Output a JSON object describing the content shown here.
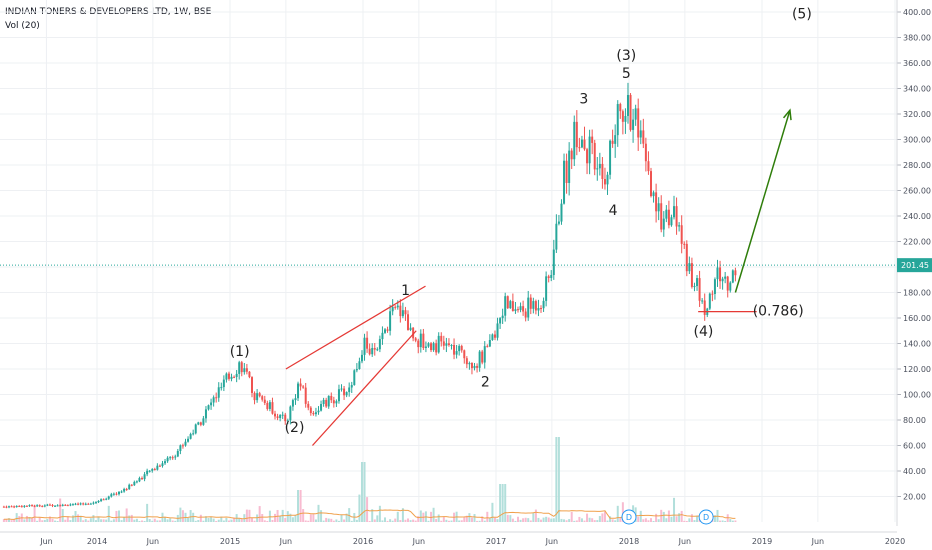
{
  "header": {
    "title": "INDIAN TONERS & DEVELOPERS LTD, 1W, BSE",
    "volume_indicator": "Vol (20)"
  },
  "colors": {
    "up": "#26a69a",
    "down": "#ef5350",
    "up_vol": "#b2dfdb",
    "down_vol": "#f8bbd0",
    "trendline": "#e53935",
    "arrow": "#2e7d0a",
    "price_line": "#26a69a",
    "vol_ma": "#f0a04b",
    "grid": "#eef0f3"
  },
  "chart_data": {
    "type": "candlestick",
    "symbol": "INDIAN TONERS & DEVELOPERS LTD",
    "interval": "1W",
    "exchange": "BSE",
    "ylim": [
      0,
      410
    ],
    "y_ticks": [
      "20.00",
      "40.00",
      "60.00",
      "80.00",
      "100.00",
      "120.00",
      "140.00",
      "160.00",
      "180.00",
      "200.00",
      "220.00",
      "240.00",
      "260.00",
      "280.00",
      "300.00",
      "320.00",
      "340.00",
      "360.00",
      "380.00",
      "400.00"
    ],
    "x_ticks": [
      "Jun",
      "2014",
      "Jun",
      "2015",
      "Jun",
      "2016",
      "Jun",
      "2017",
      "Jun",
      "2018",
      "Jun",
      "2019",
      "Jun",
      "2020"
    ],
    "last_price": "201.45",
    "price_path": [
      [
        2013.3,
        12
      ],
      [
        2013.6,
        13
      ],
      [
        2013.9,
        14
      ],
      [
        2014.0,
        16
      ],
      [
        2014.2,
        25
      ],
      [
        2014.4,
        40
      ],
      [
        2014.6,
        55
      ],
      [
        2014.75,
        75
      ],
      [
        2014.9,
        100
      ],
      [
        2015.0,
        115
      ],
      [
        2015.08,
        125
      ],
      [
        2015.18,
        100
      ],
      [
        2015.3,
        90
      ],
      [
        2015.42,
        78
      ],
      [
        2015.52,
        110
      ],
      [
        2015.6,
        85
      ],
      [
        2015.75,
        95
      ],
      [
        2015.9,
        105
      ],
      [
        2016.0,
        140
      ],
      [
        2016.1,
        130
      ],
      [
        2016.2,
        160
      ],
      [
        2016.3,
        170
      ],
      [
        2016.35,
        150
      ],
      [
        2016.45,
        140
      ],
      [
        2016.6,
        140
      ],
      [
        2016.75,
        130
      ],
      [
        2016.85,
        125
      ],
      [
        2016.95,
        135
      ],
      [
        2017.05,
        170
      ],
      [
        2017.2,
        165
      ],
      [
        2017.35,
        175
      ],
      [
        2017.42,
        200
      ],
      [
        2017.5,
        265
      ],
      [
        2017.6,
        310
      ],
      [
        2017.7,
        290
      ],
      [
        2017.8,
        265
      ],
      [
        2017.9,
        310
      ],
      [
        2017.98,
        330
      ],
      [
        2018.08,
        300
      ],
      [
        2018.2,
        240
      ],
      [
        2018.35,
        240
      ],
      [
        2018.45,
        200
      ],
      [
        2018.52,
        180
      ],
      [
        2018.58,
        165
      ],
      [
        2018.66,
        195
      ],
      [
        2018.75,
        185
      ],
      [
        2018.8,
        201
      ]
    ],
    "annotations": [
      {
        "label": "(1)",
        "x": 2015.08,
        "y": 128
      },
      {
        "label": "(2)",
        "x": 2015.5,
        "y": 80
      },
      {
        "label": "1",
        "x": 2016.32,
        "y": 175
      },
      {
        "label": "2",
        "x": 2016.92,
        "y": 122
      },
      {
        "label": "3",
        "x": 2017.66,
        "y": 325
      },
      {
        "label": "4",
        "x": 2017.88,
        "y": 258
      },
      {
        "label": "5",
        "x": 2017.98,
        "y": 345
      },
      {
        "label": "(3)",
        "x": 2017.98,
        "y": 345
      },
      {
        "label": "(4)",
        "x": 2018.56,
        "y": 163
      },
      {
        "label": "(0.786)",
        "x": 2018.9,
        "y": 165
      },
      {
        "label": "(5)",
        "x": 2019.3,
        "y": 395
      }
    ],
    "drawings": {
      "trendline_upper": [
        [
          2015.42,
          120
        ],
        [
          2016.47,
          185
        ]
      ],
      "trendline_lower": [
        [
          2015.62,
          60
        ],
        [
          2016.4,
          150
        ]
      ],
      "support_line": [
        [
          2018.52,
          165
        ],
        [
          2018.96,
          165
        ]
      ],
      "projection_arrow": [
        [
          2018.8,
          180
        ],
        [
          2019.21,
          323
        ]
      ]
    },
    "volume_markers": [
      "D",
      "D"
    ],
    "grid": true,
    "legend": "none"
  }
}
